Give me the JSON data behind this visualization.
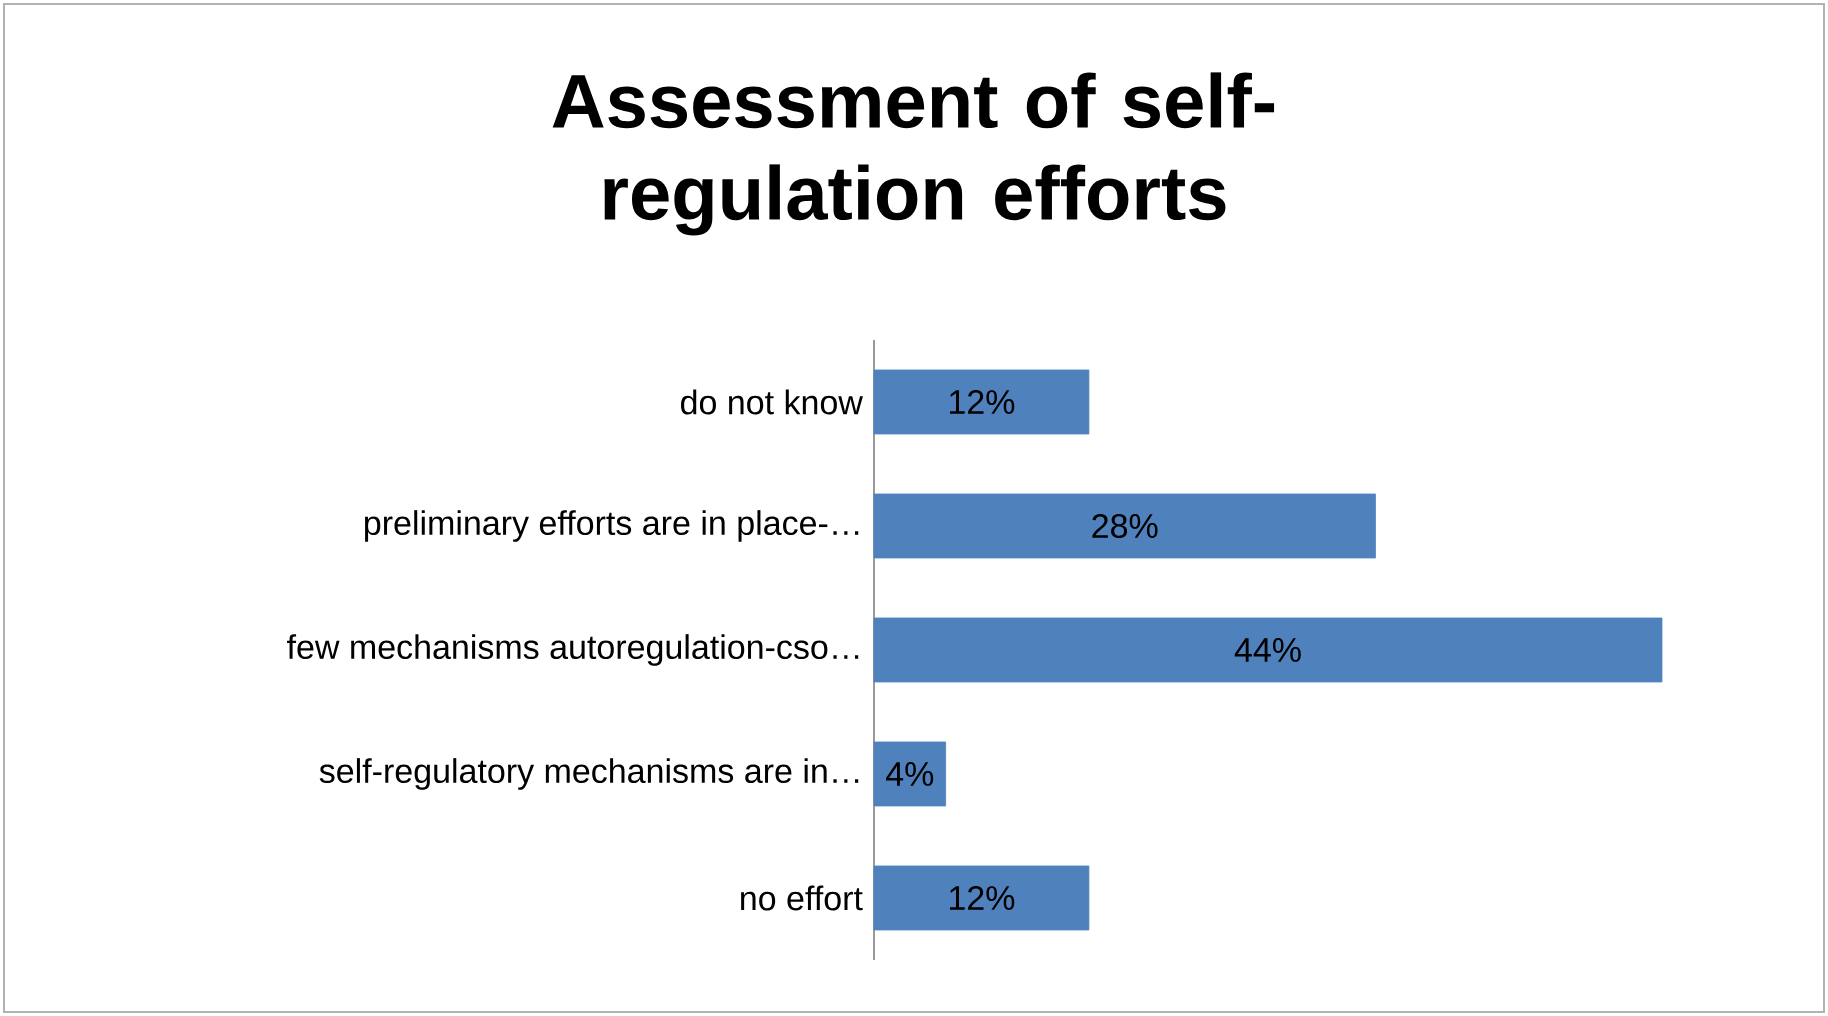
{
  "chart_data": {
    "type": "bar",
    "orientation": "horizontal",
    "title": "Assessment of self-regulation efforts",
    "categories": [
      "do not know",
      "preliminary efforts are in place-…",
      "few mechanisms autoregulation-cso…",
      "self-regulatory mechanisms are in…",
      "no effort"
    ],
    "values": [
      12,
      28,
      44,
      4,
      12
    ],
    "value_labels": [
      "12%",
      "28%",
      "44%",
      "4%",
      "12%"
    ],
    "color": "#4f81bd"
  }
}
